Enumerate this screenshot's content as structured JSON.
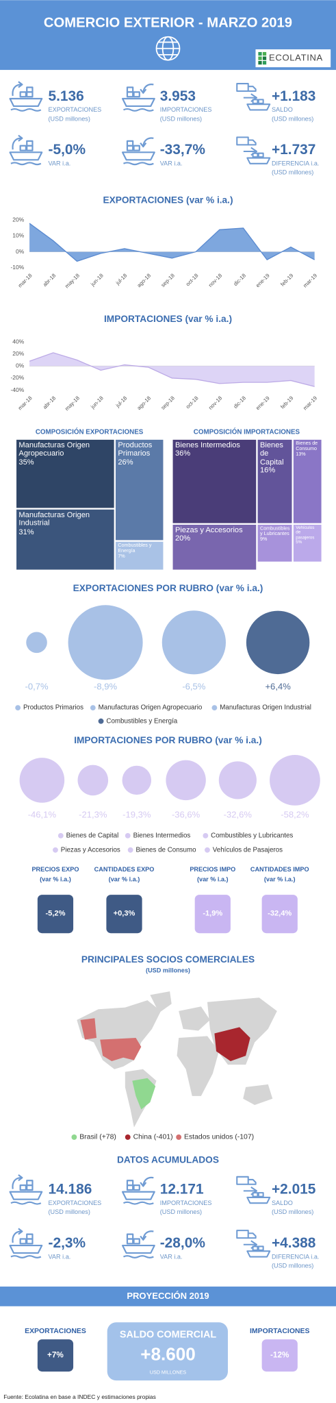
{
  "header": {
    "title": "COMERCIO EXTERIOR - MARZO 2019",
    "logo": "ECOLATINA"
  },
  "monthly": [
    {
      "value": "5.136",
      "label": "EXPORTACIONES",
      "unit": "(USD millones)"
    },
    {
      "value": "3.953",
      "label": "IMPORTACIONES",
      "unit": "(USD millones)"
    },
    {
      "value": "+1.183",
      "label": "SALDO",
      "unit": "(USD millones)"
    },
    {
      "value": "-5,0%",
      "label": "VAR i.a."
    },
    {
      "value": "-33,7%",
      "label": "VAR i.a."
    },
    {
      "value": "+1.737",
      "label": "DIFERENCIA i.a.",
      "unit": "(USD millones)"
    }
  ],
  "chart_data": [
    {
      "type": "area",
      "title": "EXPORTACIONES (var % i.a.)",
      "categories": [
        "mar-18",
        "abr-18",
        "may-18",
        "jun-18",
        "jul-18",
        "ago-18",
        "sep-18",
        "oct-18",
        "nov-18",
        "dic-18",
        "ene-19",
        "feb-19",
        "mar-19"
      ],
      "values": [
        18,
        7,
        -6,
        -1,
        2,
        -1,
        -4,
        0,
        14,
        15,
        -5,
        3,
        -5
      ],
      "color": "#7ea7de",
      "stroke": "#5a8ad0",
      "grid": false,
      "ylim": [
        -10,
        20
      ],
      "yticks": [
        {
          "value": 20,
          "label": "20%"
        },
        {
          "value": 10,
          "label": "10%"
        },
        {
          "value": 0,
          "label": "0%"
        },
        {
          "value": -10,
          "label": "-10%"
        }
      ]
    },
    {
      "type": "area",
      "title": "IMPORTACIONES (var % i.a.)",
      "categories": [
        "mar-18",
        "abr-18",
        "may-18",
        "jun-18",
        "jul-18",
        "ago-18",
        "sep-18",
        "oct-18",
        "nov-18",
        "dic-18",
        "ene-19",
        "feb-19",
        "mar-19"
      ],
      "values": [
        8,
        22,
        10,
        -7,
        2,
        -2,
        -20,
        -22,
        -29,
        -27,
        -27,
        -24,
        -34
      ],
      "color": "#ddd4f6",
      "stroke": "#bcaae6",
      "grid": false,
      "ylim": [
        -40,
        40
      ],
      "yticks": [
        {
          "value": 40,
          "label": "40%"
        },
        {
          "value": 20,
          "label": "20%"
        },
        {
          "value": 0,
          "label": "0%"
        },
        {
          "value": -20,
          "label": "-20%"
        },
        {
          "value": -40,
          "label": "-40%"
        }
      ]
    },
    {
      "type": "treemap",
      "title": "COMPOSICIÓN EXPORTACIONES",
      "categories": [
        "Manufacturas Origen Agropecuario",
        "Manufacturas Origen Industrial",
        "Productos Primarios",
        "Combustibles y Energía"
      ],
      "values": [
        35,
        31,
        26,
        7
      ],
      "value_labels": [
        "35%",
        "31%",
        "26%",
        "7%"
      ],
      "colors": [
        "#2f4566",
        "#3b557c",
        "#5b7aa8",
        "#a9c2e6"
      ]
    },
    {
      "type": "treemap",
      "title": "COMPOSICIÓN IMPORTACIONES",
      "categories": [
        "Bienes Intermedios",
        "Piezas y Accesorios",
        "Bienes de Capital",
        "Bienes de Consumo",
        "Combustibles y Lubricantes",
        "Vehículos de pasajeros"
      ],
      "values": [
        36,
        20,
        16,
        13,
        9,
        5
      ],
      "value_labels": [
        "36%",
        "20%",
        "16%",
        "13%",
        "9%",
        "5%"
      ],
      "colors": [
        "#4a3d78",
        "#7966ae",
        "#62549a",
        "#8a76c6",
        "#a792db",
        "#bba9ea"
      ]
    },
    {
      "type": "bubble",
      "title": "EXPORTACIONES POR RUBRO (var % i.a.)",
      "categories": [
        "Productos Primarios",
        "Manufacturas Origen Agropecuario",
        "Manufacturas Origen Industrial",
        "Combustibles y Energía"
      ],
      "values": [
        -0.7,
        -8.9,
        -6.5,
        6.4
      ],
      "value_labels": [
        "-0,7%",
        "-8,9%",
        "-6,5%",
        "+6,4%"
      ],
      "colors": [
        "#a8c1e6",
        "#a8c1e6",
        "#a8c1e6",
        "#4f6b95"
      ]
    },
    {
      "type": "bubble",
      "title": "IMPORTACIONES POR RUBRO (var % i.a.)",
      "categories": [
        "Bienes de Capital",
        "Bienes Intermedios",
        "Combustibles y Lubricantes",
        "Piezas y Accesorios",
        "Bienes de Consumo",
        "Vehículos de Pasajeros"
      ],
      "values": [
        -46.1,
        -21.3,
        -19.3,
        -36.6,
        -32.6,
        -58.2
      ],
      "value_labels": [
        "-46,1%",
        "-21,3%",
        "-19,3%",
        "-36,6%",
        "-32,6%",
        "-58,2%"
      ],
      "colors": [
        "#d6caf2",
        "#d6caf2",
        "#d6caf2",
        "#d6caf2",
        "#d6caf2",
        "#d6caf2"
      ]
    }
  ],
  "price_boxes": [
    {
      "title": "PRECIOS EXPO",
      "subtitle": "(var % i.a.)",
      "value": "-5,2%"
    },
    {
      "title": "CANTIDADES EXPO",
      "subtitle": "(var % i.a.)",
      "value": "+0,3%"
    },
    {
      "title": "PRECIOS IMPO",
      "subtitle": "(var % i.a.)",
      "value": "-1,9%"
    },
    {
      "title": "CANTIDADES IMPO",
      "subtitle": "(var % i.a.)",
      "value": "-32,4%"
    }
  ],
  "map": {
    "title": "PRINCIPALES SOCIOS COMERCIALES",
    "subtitle": "(USD millones)",
    "legend": [
      {
        "name": "Brasil (+78)",
        "color": "#90d890"
      },
      {
        "name": "China (-401)",
        "color": "#a8262e"
      },
      {
        "name": "Estados unidos (-107)",
        "color": "#d47070"
      }
    ]
  },
  "accumulated": {
    "title": "DATOS ACUMULADOS",
    "items": [
      {
        "value": "14.186",
        "label": "EXPORTACIONES",
        "unit": "(USD millones)"
      },
      {
        "value": "12.171",
        "label": "IMPORTACIONES",
        "unit": "(USD millones)"
      },
      {
        "value": "+2.015",
        "label": "SALDO",
        "unit": "(USD millones)"
      },
      {
        "value": "-2,3%",
        "label": "VAR i.a."
      },
      {
        "value": "-28,0%",
        "label": "VAR i.a."
      },
      {
        "value": "+4.388",
        "label": "DIFERENCIA i.a.",
        "unit": "(USD millones)"
      }
    ]
  },
  "projection": {
    "title": "PROYECCIÓN 2019",
    "exports": {
      "title": "EXPORTACIONES",
      "value": "+7%"
    },
    "balance": {
      "title": "SALDO COMERCIAL",
      "value": "+8.600",
      "unit": "USD MILLONES"
    },
    "imports": {
      "title": "IMPORTACIONES",
      "value": "-12%"
    }
  },
  "footer": "Fuente: Ecolatina en base a INDEC y estimaciones propias"
}
